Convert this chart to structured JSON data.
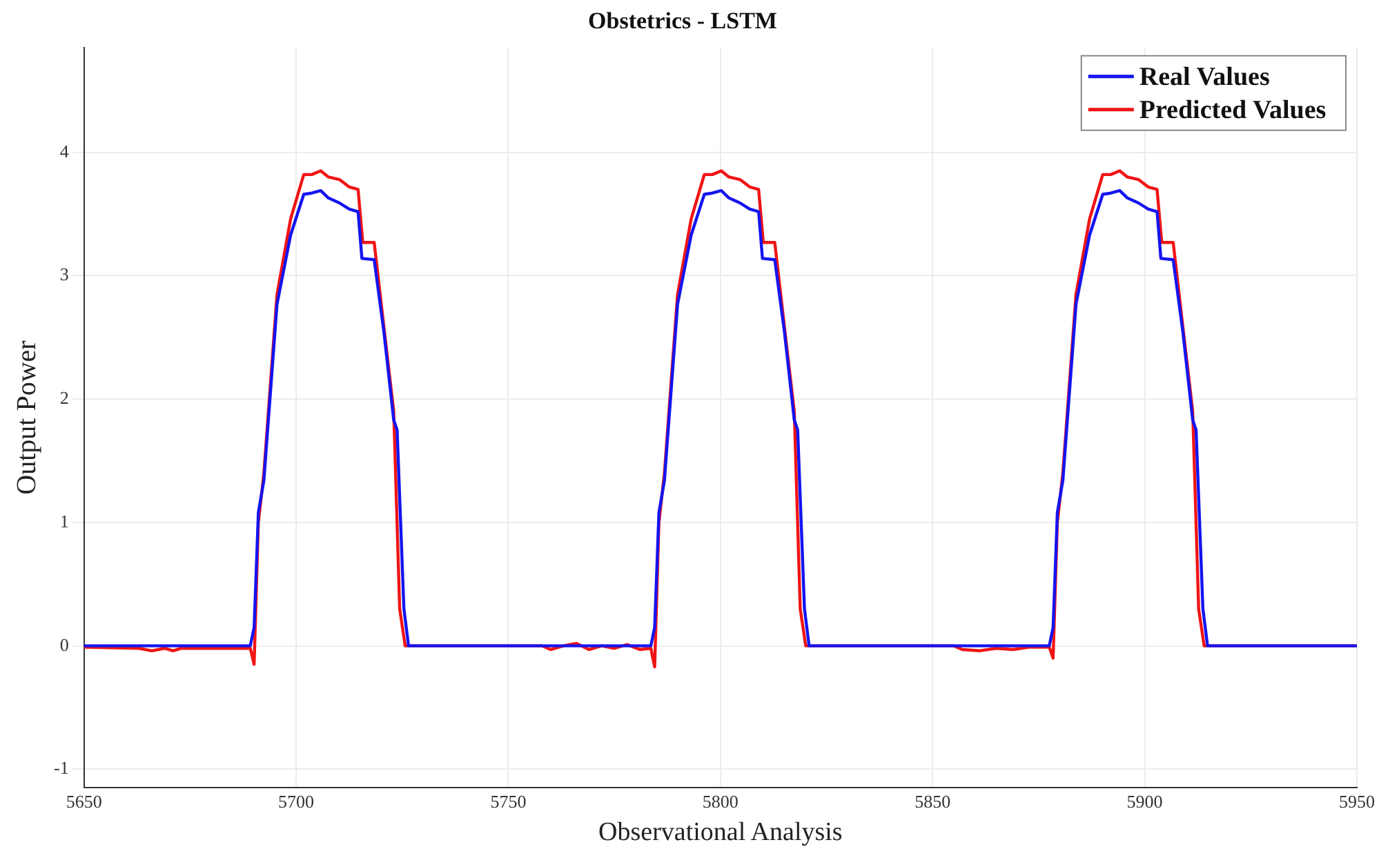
{
  "chart_data": {
    "type": "line",
    "title": "Obstetrics - LSTM",
    "xlabel": "Observational Analysis",
    "ylabel": "Output Power",
    "xlim": [
      5650,
      5950
    ],
    "xticks": [
      5650,
      5700,
      5750,
      5800,
      5850,
      5900,
      5950
    ],
    "ylim": [
      -1.15,
      4.85
    ],
    "yticks": [
      -1,
      0,
      1,
      2,
      3,
      4
    ],
    "grid": true,
    "legend": "top right",
    "marker": "none",
    "line_style": "solid",
    "series": [
      {
        "name": "Real Values",
        "color": "#1414f0",
        "x": [
          5650,
          5689.2,
          5690.1,
          5691.1,
          5692.4,
          5695.5,
          5698.7,
          5701.8,
          5703.7,
          5705.8,
          5707.6,
          5710.2,
          5712.5,
          5714.6,
          5715.5,
          5718.4,
          5720.7,
          5723.0,
          5723.8,
          5725.4,
          5726.5,
          5783.6,
          5784.5,
          5785.5,
          5786.8,
          5789.9,
          5793.1,
          5796.2,
          5798.1,
          5800.2,
          5802.0,
          5804.6,
          5806.9,
          5809.0,
          5809.9,
          5812.8,
          5815.1,
          5817.4,
          5818.2,
          5819.8,
          5820.9,
          5877.5,
          5878.4,
          5879.4,
          5880.7,
          5883.8,
          5887.0,
          5890.1,
          5892.0,
          5894.1,
          5895.9,
          5898.5,
          5900.8,
          5902.9,
          5903.8,
          5906.7,
          5909.0,
          5911.3,
          5912.1,
          5913.7,
          5914.8,
          5950
        ],
        "values": [
          0,
          0,
          0.15,
          1.08,
          1.34,
          2.77,
          3.33,
          3.66,
          3.67,
          3.69,
          3.63,
          3.59,
          3.54,
          3.52,
          3.14,
          3.13,
          2.54,
          1.83,
          1.75,
          0.3,
          0,
          0,
          0.15,
          1.08,
          1.34,
          2.77,
          3.33,
          3.66,
          3.67,
          3.69,
          3.63,
          3.59,
          3.54,
          3.52,
          3.14,
          3.13,
          2.54,
          1.83,
          1.75,
          0.3,
          0,
          0,
          0.15,
          1.08,
          1.34,
          2.77,
          3.33,
          3.66,
          3.67,
          3.69,
          3.63,
          3.59,
          3.54,
          3.52,
          3.14,
          3.13,
          2.54,
          1.83,
          1.75,
          0.3,
          0,
          0
        ]
      },
      {
        "name": "Predicted Values",
        "color": "#f01414",
        "x": [
          5650,
          5663,
          5666,
          5669,
          5671,
          5673,
          5689.2,
          5690.1,
          5691.1,
          5692.4,
          5695.5,
          5698.7,
          5701.8,
          5703.7,
          5705.8,
          5707.6,
          5710.2,
          5712.5,
          5714.6,
          5715.7,
          5718.4,
          5720.7,
          5723.0,
          5724.4,
          5725.7,
          5758,
          5760,
          5763,
          5766,
          5769,
          5772,
          5775,
          5778,
          5781,
          5783.6,
          5784.5,
          5785.5,
          5786.8,
          5789.9,
          5793.1,
          5796.2,
          5798.1,
          5800.2,
          5802.0,
          5804.6,
          5806.9,
          5809.0,
          5810.1,
          5812.8,
          5815.1,
          5817.4,
          5818.8,
          5820.1,
          5855,
          5857,
          5861,
          5865,
          5869,
          5873,
          5877.5,
          5878.4,
          5879.4,
          5880.7,
          5883.8,
          5887.0,
          5890.1,
          5892.0,
          5894.1,
          5895.9,
          5898.5,
          5900.8,
          5902.9,
          5904.0,
          5906.7,
          5909.0,
          5911.3,
          5912.7,
          5914.0,
          5950
        ],
        "values": [
          -0.01,
          -0.02,
          -0.04,
          -0.02,
          -0.04,
          -0.02,
          -0.02,
          -0.15,
          1.0,
          1.4,
          2.85,
          3.46,
          3.82,
          3.82,
          3.85,
          3.8,
          3.78,
          3.72,
          3.7,
          3.27,
          3.27,
          2.58,
          1.9,
          0.3,
          0,
          0,
          -0.03,
          0,
          0.02,
          -0.03,
          0,
          -0.02,
          0.01,
          -0.03,
          -0.02,
          -0.17,
          1.0,
          1.4,
          2.85,
          3.46,
          3.82,
          3.82,
          3.85,
          3.8,
          3.78,
          3.72,
          3.7,
          3.27,
          3.27,
          2.58,
          1.9,
          0.3,
          0,
          0,
          -0.03,
          -0.04,
          -0.02,
          -0.03,
          -0.01,
          -0.01,
          -0.1,
          1.0,
          1.4,
          2.85,
          3.46,
          3.82,
          3.82,
          3.85,
          3.8,
          3.78,
          3.72,
          3.7,
          3.27,
          3.27,
          2.58,
          1.9,
          0.3,
          0,
          0
        ]
      }
    ]
  }
}
